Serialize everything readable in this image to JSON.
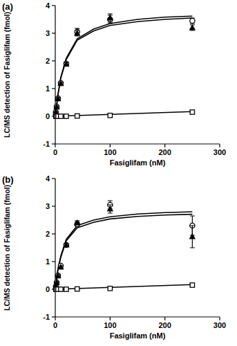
{
  "chart_data": [
    {
      "type": "scatter",
      "title": "(a)",
      "x_label": "Fasiglifam (nM)",
      "y_label": "LC/MS detection of Fasiglifam (fmol)",
      "xlim": [
        0,
        300
      ],
      "ylim": [
        -1,
        4
      ],
      "xticks": [
        0,
        100,
        200,
        300
      ],
      "yticks": [
        -1,
        0,
        1,
        2,
        3,
        4
      ],
      "grid": false,
      "series": [
        {
          "type": "line",
          "color": "#000000",
          "line_style": "solid",
          "x": [
            0,
            5,
            10,
            20,
            40,
            70,
            100,
            150,
            200,
            250
          ],
          "values": [
            0,
            0.8,
            1.4,
            2.1,
            2.8,
            3.15,
            3.35,
            3.5,
            3.58,
            3.62
          ]
        },
        {
          "type": "line",
          "color": "#000000",
          "line_style": "solid",
          "x": [
            0,
            5,
            10,
            20,
            40,
            70,
            100,
            150,
            200,
            250
          ],
          "values": [
            0,
            0.78,
            1.37,
            2.05,
            2.75,
            3.08,
            3.28,
            3.42,
            3.5,
            3.55
          ]
        },
        {
          "type": "line",
          "color": "#000000",
          "line_style": "solid",
          "x": [
            0,
            250
          ],
          "values": [
            0,
            0.17
          ]
        },
        {
          "type": "scatter",
          "marker": "open-circle",
          "color": "#000000",
          "x": [
            1,
            2.5,
            5,
            10,
            20,
            40,
            100,
            250
          ],
          "values": [
            0.15,
            0.35,
            0.65,
            1.2,
            1.9,
            3.05,
            3.5,
            3.45
          ],
          "errors": [
            0.03,
            0.04,
            0.05,
            0.05,
            0.06,
            0.12,
            0.15,
            0.1
          ]
        },
        {
          "type": "scatter",
          "marker": "filled-triangle",
          "color": "#000000",
          "x": [
            1,
            2.5,
            5,
            10,
            20,
            40,
            100,
            250
          ],
          "values": [
            0.14,
            0.33,
            0.63,
            1.18,
            1.88,
            3.0,
            3.55,
            3.2
          ],
          "errors": [
            0.03,
            0.04,
            0.05,
            0.05,
            0.06,
            0.1,
            0.15,
            0.1
          ]
        },
        {
          "type": "scatter",
          "marker": "open-square",
          "color": "#000000",
          "x": [
            1,
            2.5,
            5,
            10,
            20,
            40,
            100,
            250
          ],
          "values": [
            0,
            0,
            0,
            0,
            0,
            0.01,
            0.03,
            0.15
          ],
          "errors": [
            0.01,
            0.01,
            0.01,
            0.01,
            0.01,
            0.01,
            0.02,
            0.03
          ]
        }
      ]
    },
    {
      "type": "scatter",
      "title": "(b)",
      "x_label": "Fasiglifam (nM)",
      "y_label": "LC/MS detection of Fasiglifam (fmol)",
      "xlim": [
        0,
        300
      ],
      "ylim": [
        -1,
        4
      ],
      "xticks": [
        0,
        100,
        200,
        300
      ],
      "yticks": [
        -1,
        0,
        1,
        2,
        3,
        4
      ],
      "grid": false,
      "series": [
        {
          "type": "line",
          "color": "#000000",
          "line_style": "solid",
          "x": [
            0,
            5,
            10,
            20,
            40,
            70,
            100,
            150,
            200,
            250
          ],
          "values": [
            0,
            0.75,
            1.2,
            1.8,
            2.3,
            2.5,
            2.62,
            2.72,
            2.77,
            2.8
          ]
        },
        {
          "type": "line",
          "color": "#000000",
          "line_style": "solid",
          "x": [
            0,
            5,
            10,
            20,
            40,
            70,
            100,
            150,
            200,
            250
          ],
          "values": [
            0,
            0.72,
            1.15,
            1.75,
            2.22,
            2.42,
            2.54,
            2.63,
            2.68,
            2.71
          ]
        },
        {
          "type": "line",
          "color": "#000000",
          "line_style": "solid",
          "x": [
            0,
            250
          ],
          "values": [
            0,
            0.17
          ]
        },
        {
          "type": "scatter",
          "marker": "open-circle",
          "color": "#000000",
          "x": [
            1,
            2.5,
            5,
            10,
            20,
            40,
            100,
            250
          ],
          "values": [
            0.1,
            0.25,
            0.5,
            0.85,
            1.6,
            2.35,
            3.05,
            2.3
          ],
          "errors": [
            0.03,
            0.03,
            0.04,
            0.05,
            0.05,
            0.07,
            0.15,
            0.35
          ]
        },
        {
          "type": "scatter",
          "marker": "filled-triangle",
          "color": "#000000",
          "x": [
            1,
            2.5,
            5,
            10,
            20,
            40,
            100,
            250
          ],
          "values": [
            0.1,
            0.24,
            0.48,
            0.8,
            1.6,
            2.4,
            2.9,
            1.9
          ],
          "errors": [
            0.03,
            0.03,
            0.04,
            0.05,
            0.05,
            0.07,
            0.15,
            0.4
          ]
        },
        {
          "type": "scatter",
          "marker": "open-square",
          "color": "#000000",
          "x": [
            1,
            2.5,
            5,
            10,
            20,
            40,
            100,
            250
          ],
          "values": [
            0,
            0,
            0,
            0,
            0,
            0.01,
            0.03,
            0.15
          ],
          "errors": [
            0.01,
            0.01,
            0.01,
            0.01,
            0.01,
            0.01,
            0.02,
            0.03
          ]
        }
      ]
    }
  ]
}
